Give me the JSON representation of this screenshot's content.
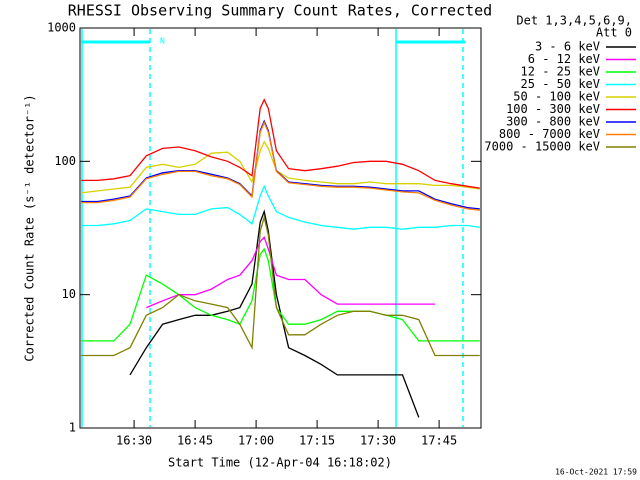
{
  "chart_data": {
    "type": "line",
    "title": "RHESSI Observing Summary Count Rates, Corrected",
    "x_label": "Start Time (12-Apr-04 16:18:02)",
    "y_label": "Corrected Count Rate (s⁻¹ detector⁻¹)",
    "legend_title": [
      "Det 1,3,4,5,6,9,",
      "Att 0"
    ],
    "annotations": [
      "N"
    ],
    "footer": "16-Oct-2021 17:59",
    "log_y": true,
    "legend": "outside-right",
    "xlim": [
      976.7,
      1075.3
    ],
    "xticks": [
      {
        "value": 990,
        "label": "16:30"
      },
      {
        "value": 1005,
        "label": "16:45"
      },
      {
        "value": 1020,
        "label": "17:00"
      },
      {
        "value": 1035,
        "label": "17:15"
      },
      {
        "value": 1050,
        "label": "17:30"
      },
      {
        "value": 1065,
        "label": "17:45"
      }
    ],
    "ylim": [
      1,
      1000
    ],
    "yticks": [
      1,
      10,
      100,
      1000
    ],
    "x": [
      977,
      981,
      985,
      989,
      993,
      997,
      1001,
      1005,
      1009,
      1013,
      1016,
      1019,
      1021,
      1022,
      1023,
      1025,
      1028,
      1032,
      1036,
      1040,
      1044,
      1048,
      1052,
      1056,
      1060,
      1064,
      1068,
      1072,
      1075
    ],
    "series": [
      {
        "name": "3 - 6 keV",
        "color": "#000000",
        "values": [
          null,
          null,
          null,
          2.5,
          4,
          6,
          6.5,
          7,
          7,
          7.5,
          8,
          12,
          35,
          42,
          30,
          10,
          4,
          3.5,
          3,
          2.5,
          2.5,
          2.5,
          2.5,
          2.5,
          1.2,
          null,
          null,
          null,
          null
        ]
      },
      {
        "name": "6 - 12 keV",
        "color": "#ff00ff",
        "values": [
          null,
          null,
          null,
          null,
          8,
          9,
          10,
          10,
          11,
          13,
          14,
          18,
          25,
          27,
          22,
          14,
          13,
          13,
          10,
          8.5,
          8.5,
          8.5,
          8.5,
          8.5,
          8.5,
          8.5,
          null,
          null,
          null
        ]
      },
      {
        "name": "12 - 25 keV",
        "color": "#00ff00",
        "values": [
          4.5,
          4.5,
          4.5,
          6,
          14,
          12,
          10,
          8,
          7,
          6.5,
          6,
          9,
          20,
          22,
          18,
          8,
          6,
          6,
          6.5,
          7.5,
          7.5,
          7.5,
          7,
          6.5,
          4.5,
          4.5,
          4.5,
          4.5,
          4.5
        ]
      },
      {
        "name": "25 - 50 keV",
        "color": "#00ffff",
        "values": [
          33,
          33,
          34,
          36,
          44,
          42,
          40,
          40,
          44,
          45,
          40,
          34,
          55,
          65,
          55,
          42,
          38,
          35,
          33,
          32,
          31,
          32,
          32,
          31,
          32,
          32,
          33,
          33,
          32
        ]
      },
      {
        "name": "50 - 100 keV",
        "color": "#d8d000",
        "values": [
          58,
          60,
          62,
          64,
          90,
          95,
          90,
          95,
          115,
          117,
          100,
          70,
          120,
          140,
          125,
          85,
          75,
          72,
          70,
          68,
          68,
          70,
          68,
          68,
          68,
          66,
          66,
          64,
          62
        ]
      },
      {
        "name": "100 - 300 keV",
        "color": "#ff0000",
        "values": [
          72,
          72,
          74,
          78,
          110,
          125,
          128,
          120,
          108,
          100,
          90,
          78,
          250,
          290,
          250,
          120,
          88,
          85,
          88,
          92,
          98,
          100,
          100,
          95,
          85,
          72,
          68,
          65,
          63
        ]
      },
      {
        "name": "300 - 800 keV",
        "color": "#0000ff",
        "values": [
          50,
          50,
          52,
          55,
          75,
          82,
          85,
          85,
          80,
          75,
          68,
          55,
          170,
          200,
          170,
          85,
          70,
          68,
          66,
          65,
          65,
          64,
          62,
          60,
          60,
          52,
          48,
          45,
          44
        ]
      },
      {
        "name": "800 - 7000 keV",
        "color": "#ff8000",
        "values": [
          49,
          49,
          51,
          54,
          74,
          80,
          84,
          84,
          78,
          74,
          67,
          54,
          165,
          195,
          165,
          84,
          69,
          67,
          65,
          64,
          64,
          63,
          61,
          59,
          58,
          51,
          47,
          44,
          43
        ]
      },
      {
        "name": "7000 - 15000 keV",
        "color": "#808000",
        "values": [
          3.5,
          3.5,
          3.5,
          4,
          7,
          8,
          10,
          9,
          8.5,
          8,
          6,
          4,
          30,
          38,
          28,
          8,
          5,
          5,
          6,
          7,
          7.5,
          7.5,
          7,
          7,
          6.5,
          3.5,
          3.5,
          3.5,
          3.5
        ]
      }
    ]
  }
}
